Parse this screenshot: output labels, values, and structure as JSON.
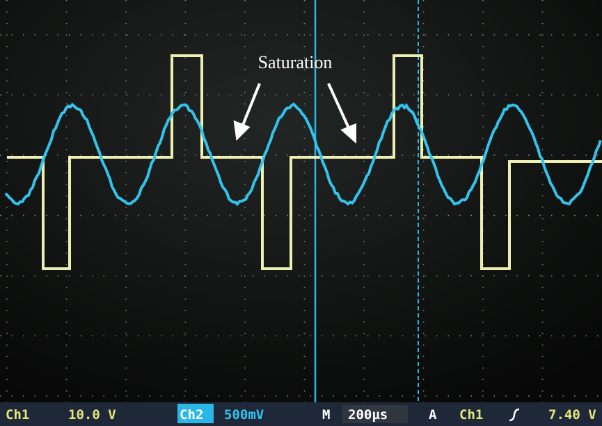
{
  "annotation": "Saturation",
  "status_bar": {
    "ch1_label": "Ch1",
    "ch1_scale": "10.0 V",
    "ch2_label": "Ch2",
    "ch2_scale": "500mV",
    "timebase_label": "M",
    "timebase": "200µs",
    "trigger_mode": "A",
    "trigger_source": "Ch1",
    "trigger_level": "7.40 V"
  }
}
